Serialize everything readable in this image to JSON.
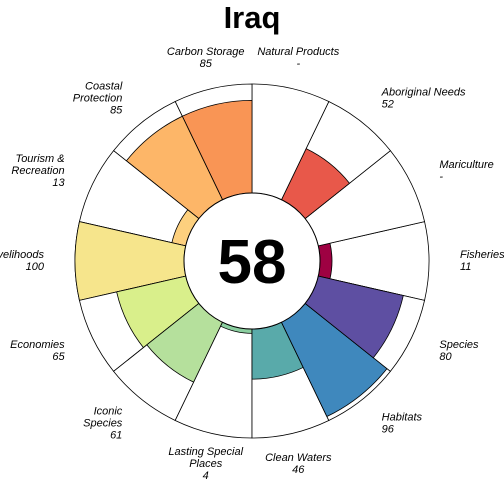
{
  "chart_data": {
    "type": "flower",
    "title": "Iraq",
    "center_score": "58",
    "range": [
      0,
      100
    ],
    "petals": [
      {
        "name": "Fisheries",
        "label_lines": [
          "Fisheries"
        ],
        "value_label": "11",
        "value": 11,
        "color": "#9E0142"
      },
      {
        "name": "Mariculture",
        "label_lines": [
          "Mariculture"
        ],
        "value_label": "-",
        "value": null,
        "color": "#D53E4F"
      },
      {
        "name": "Aboriginal Needs",
        "label_lines": [
          "Aboriginal Needs"
        ],
        "value_label": "52",
        "value": 52,
        "color": "#E8584A"
      },
      {
        "name": "Natural Products",
        "label_lines": [
          "Natural Products"
        ],
        "value_label": "-",
        "value": null,
        "color": "#F46D43"
      },
      {
        "name": "Carbon Storage",
        "label_lines": [
          "Carbon Storage"
        ],
        "value_label": "85",
        "value": 85,
        "color": "#F99555"
      },
      {
        "name": "Coastal Protection",
        "label_lines": [
          "Coastal",
          "Protection"
        ],
        "value_label": "85",
        "value": 85,
        "color": "#FDB668"
      },
      {
        "name": "Tourism & Recreation",
        "label_lines": [
          "Tourism &",
          "Recreation"
        ],
        "value_label": "13",
        "value": 13,
        "color": "#FDD07E"
      },
      {
        "name": "Livelihoods",
        "label_lines": [
          "Livelihoods"
        ],
        "value_label": "100",
        "value": 100,
        "color": "#F6E58C"
      },
      {
        "name": "Economies",
        "label_lines": [
          "Economies"
        ],
        "value_label": "65",
        "value": 65,
        "color": "#D9EF8B"
      },
      {
        "name": "Iconic Species",
        "label_lines": [
          "Iconic",
          "Species"
        ],
        "value_label": "61",
        "value": 61,
        "color": "#B5E09C"
      },
      {
        "name": "Lasting Special Places",
        "label_lines": [
          "Lasting Special",
          "Places"
        ],
        "value_label": "4",
        "value": 4,
        "color": "#8BCFA0"
      },
      {
        "name": "Clean Waters",
        "label_lines": [
          "Clean Waters"
        ],
        "value_label": "46",
        "value": 46,
        "color": "#59AAAA"
      },
      {
        "name": "Habitats",
        "label_lines": [
          "Habitats"
        ],
        "value_label": "96",
        "value": 96,
        "color": "#3F88BD"
      },
      {
        "name": "Species",
        "label_lines": [
          "Species"
        ],
        "value_label": "80",
        "value": 80,
        "color": "#5E4FA2"
      }
    ]
  }
}
